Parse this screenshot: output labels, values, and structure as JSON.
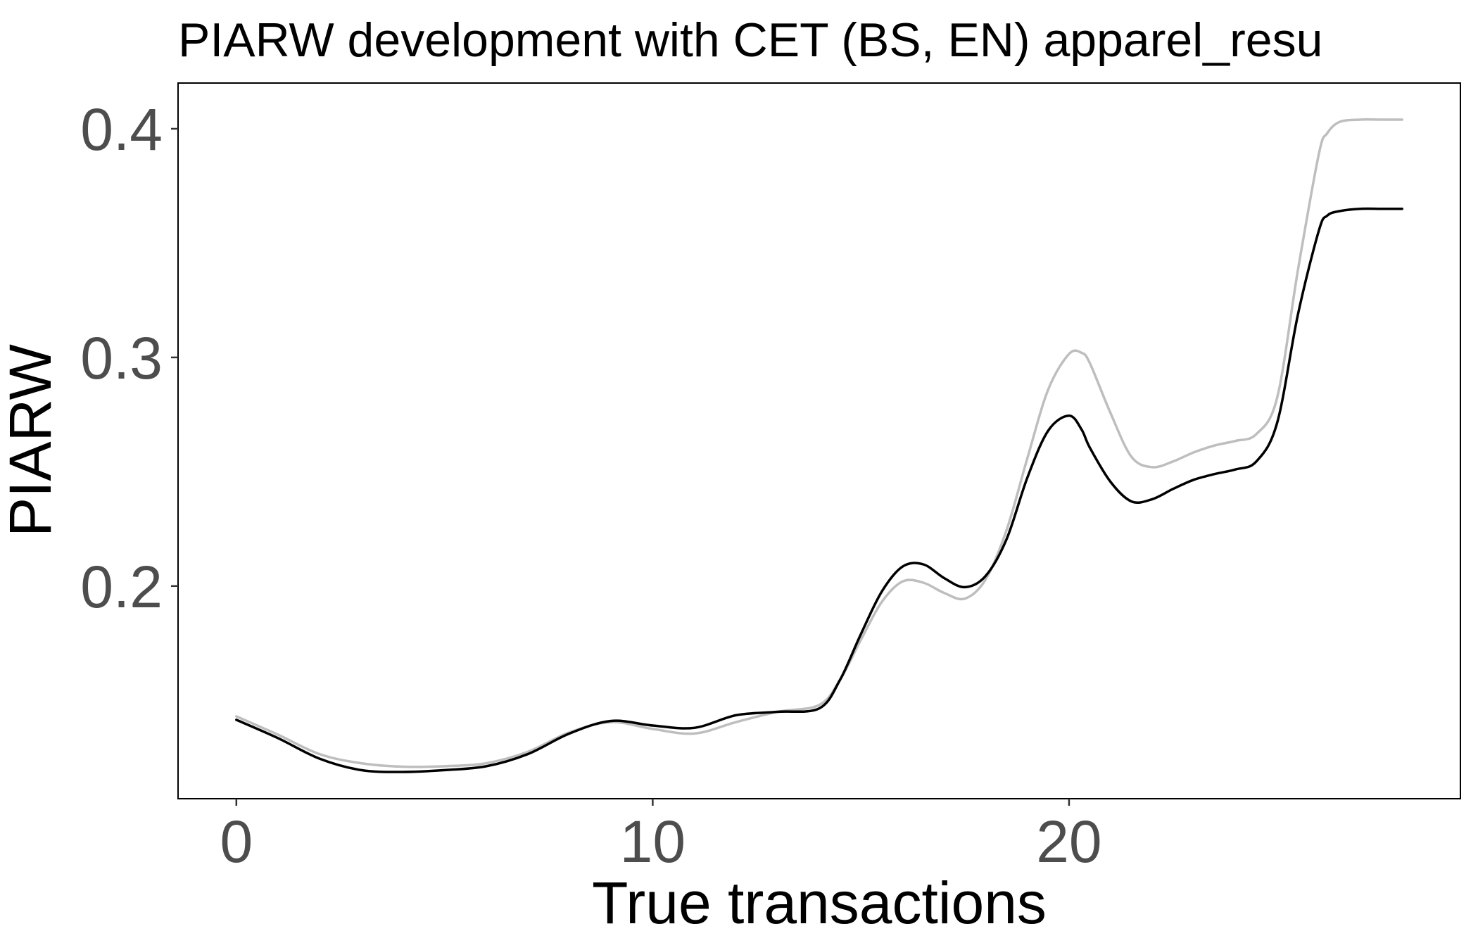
{
  "chart_data": {
    "type": "line",
    "title": "PIARW development with CET (BS, EN) apparel_resu",
    "xlabel": "True transactions",
    "ylabel": "PIARW",
    "xlim": [
      -1.4,
      29.4
    ],
    "ylim": [
      0.107,
      0.42
    ],
    "x_ticks": [
      0,
      10,
      20
    ],
    "y_ticks": [
      0.2,
      0.3,
      0.4
    ],
    "grid": false,
    "legend": "none",
    "x": [
      0,
      1,
      2,
      3,
      4,
      5,
      6,
      7,
      8,
      9,
      10,
      11,
      12,
      13,
      14,
      14.5,
      15,
      15.5,
      16,
      16.5,
      17,
      17.5,
      18,
      18.5,
      19,
      19.5,
      20,
      20.3,
      20.5,
      21,
      21.5,
      22,
      22.5,
      23,
      23.5,
      24,
      24.5,
      25,
      25.5,
      26,
      26.2,
      26.5,
      27,
      27.5,
      28
    ],
    "series": [
      {
        "color": "#000000",
        "values": [
          0.1415,
          0.1335,
          0.1245,
          0.1195,
          0.1187,
          0.1195,
          0.1212,
          0.1265,
          0.1355,
          0.141,
          0.139,
          0.138,
          0.1435,
          0.145,
          0.1465,
          0.159,
          0.179,
          0.1975,
          0.2085,
          0.2095,
          0.2035,
          0.1995,
          0.2045,
          0.2205,
          0.2475,
          0.268,
          0.2745,
          0.2685,
          0.2605,
          0.2455,
          0.237,
          0.238,
          0.2425,
          0.2465,
          0.249,
          0.251,
          0.2545,
          0.2715,
          0.319,
          0.3555,
          0.362,
          0.364,
          0.365,
          0.365,
          0.365
        ]
      },
      {
        "color": "#bebebe",
        "values": [
          0.143,
          0.135,
          0.1265,
          0.1225,
          0.121,
          0.1212,
          0.1225,
          0.1275,
          0.136,
          0.1405,
          0.1375,
          0.1355,
          0.1405,
          0.145,
          0.148,
          0.159,
          0.1765,
          0.193,
          0.202,
          0.2015,
          0.197,
          0.1945,
          0.203,
          0.2245,
          0.256,
          0.286,
          0.3015,
          0.302,
          0.2975,
          0.2755,
          0.2565,
          0.252,
          0.2545,
          0.2585,
          0.2615,
          0.2635,
          0.2665,
          0.2825,
          0.3385,
          0.389,
          0.398,
          0.403,
          0.404,
          0.404,
          0.404
        ]
      }
    ]
  }
}
